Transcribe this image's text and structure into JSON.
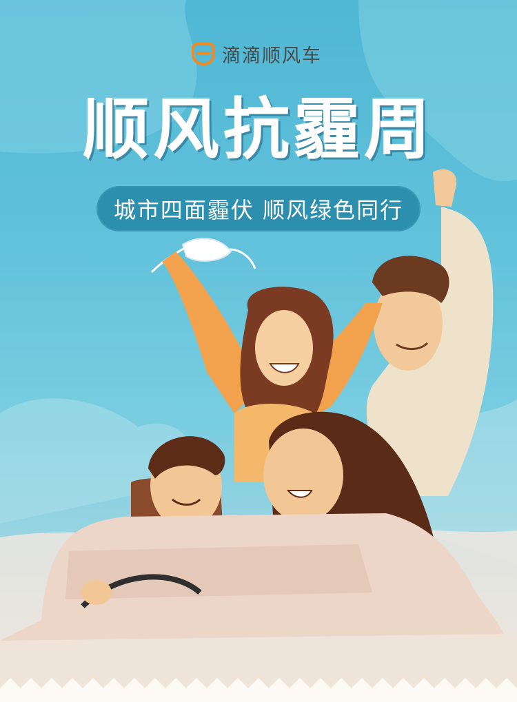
{
  "brand": {
    "name": "滴滴顺风车",
    "icon": "didi-logo-icon",
    "accent": "#f08a24"
  },
  "title": "顺风抗霾周",
  "subtitle": "城市四面霾伏 顺风绿色同行",
  "colors": {
    "sky": "#5bbcd7",
    "pill": "#2c8fae",
    "title": "#ffffff",
    "car": "#ecd6c8"
  }
}
